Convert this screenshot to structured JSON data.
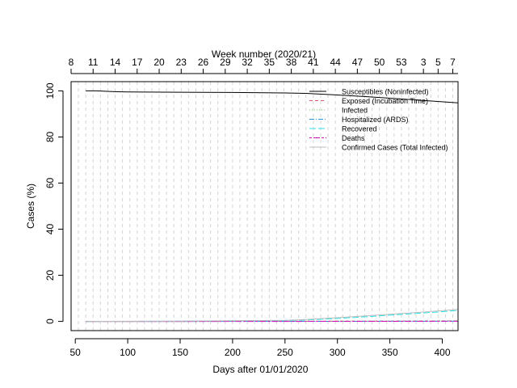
{
  "chart_data": {
    "type": "line",
    "xlabel": "Days after 01/01/2020",
    "ylabel": "Cases (%)",
    "top_axis_label": "Week number (2020/21)",
    "xlim": [
      46,
      415
    ],
    "ylim": [
      -4,
      104
    ],
    "x_ticks": [
      50,
      100,
      150,
      200,
      250,
      300,
      350,
      400
    ],
    "y_ticks": [
      0,
      20,
      40,
      60,
      80,
      100
    ],
    "week_tick_labels": [
      "8",
      "11",
      "14",
      "17",
      "20",
      "23",
      "26",
      "29",
      "32",
      "35",
      "38",
      "41",
      "44",
      "47",
      "50",
      "53",
      "3",
      "5",
      "7"
    ],
    "week_tick_days": [
      46,
      67,
      88,
      109,
      130,
      151,
      172,
      193,
      214,
      235,
      256,
      277,
      298,
      319,
      340,
      361,
      382,
      396,
      410
    ],
    "grid": true,
    "legend_position": "top-right",
    "series": [
      {
        "name": "Susceptibles (Noninfected)",
        "color": "#000000",
        "dash": "",
        "x": [
          60,
          70,
          80,
          90,
          100,
          150,
          200,
          250,
          270,
          300,
          330,
          360,
          390,
          415
        ],
        "y": [
          100,
          100,
          99.8,
          99.6,
          99.5,
          99.4,
          99.3,
          99.1,
          98.9,
          98.2,
          97.4,
          96.5,
          95.6,
          94.8
        ]
      },
      {
        "name": "Exposed (Incubation Time)",
        "color": "#df536b",
        "dash": "4,3",
        "x": [
          60,
          150,
          250,
          300,
          350,
          415
        ],
        "y": [
          0,
          0,
          0.05,
          0.1,
          0.15,
          0.2
        ]
      },
      {
        "name": "Infected",
        "color": "#61d04f",
        "dash": "1,2",
        "x": [
          60,
          150,
          250,
          300,
          350,
          415
        ],
        "y": [
          0,
          0,
          0.05,
          0.1,
          0.15,
          0.2
        ]
      },
      {
        "name": "Hospitalized (ARDS)",
        "color": "#2297e6",
        "dash": "6,2,1,2",
        "x": [
          60,
          150,
          250,
          300,
          350,
          415
        ],
        "y": [
          0,
          0,
          0.02,
          0.03,
          0.05,
          0.06
        ]
      },
      {
        "name": "Recovered",
        "color": "#28e2e5",
        "dash": "8,3",
        "x": [
          60,
          150,
          250,
          270,
          300,
          330,
          360,
          390,
          415
        ],
        "y": [
          0,
          0.1,
          0.4,
          0.6,
          1.3,
          2.1,
          3.0,
          3.9,
          4.8
        ]
      },
      {
        "name": "Deaths",
        "color": "#cd0bbc",
        "dash": "3,2,8,2",
        "x": [
          60,
          150,
          250,
          300,
          350,
          415
        ],
        "y": [
          0,
          0,
          0.01,
          0.02,
          0.03,
          0.05
        ]
      },
      {
        "name": "Confirmed Cases (Total Infected)",
        "color": "#bebebe",
        "dash": "",
        "x": [
          60,
          150,
          250,
          270,
          300,
          330,
          360,
          390,
          415
        ],
        "y": [
          0,
          0.15,
          0.5,
          0.8,
          1.6,
          2.5,
          3.4,
          4.3,
          5.2
        ]
      }
    ]
  }
}
